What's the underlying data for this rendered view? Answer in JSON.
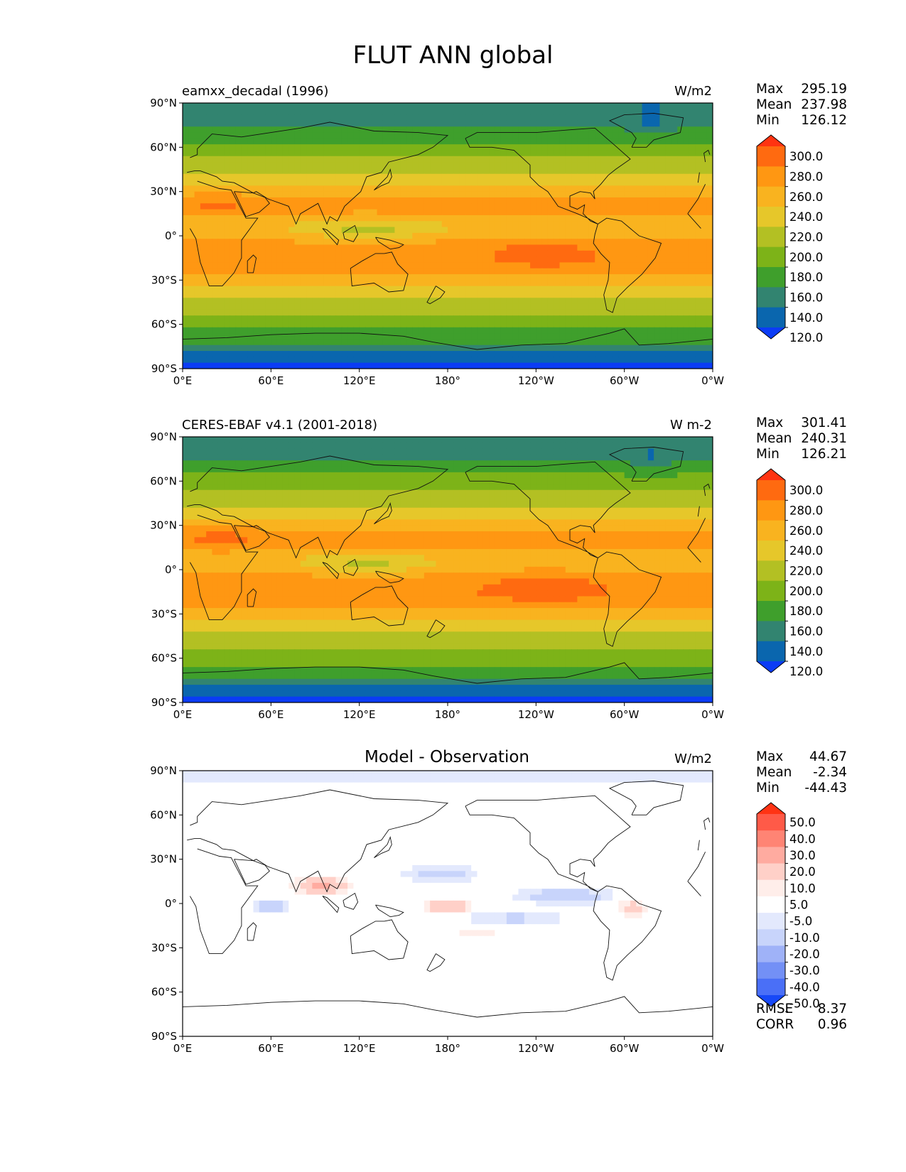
{
  "figure": {
    "title": "FLUT ANN global"
  },
  "panels": [
    {
      "title_left": "eamxx_decadal (1996)",
      "title_center": "",
      "units": "W/m2",
      "stats": [
        {
          "label": "Max",
          "value": "295.19"
        },
        {
          "label": "Mean",
          "value": "237.98"
        },
        {
          "label": "Min",
          "value": "126.12"
        }
      ],
      "colorbar": "abs"
    },
    {
      "title_left": "CERES-EBAF v4.1 (2001-2018)",
      "title_center": "",
      "units": "W m-2",
      "stats": [
        {
          "label": "Max",
          "value": "301.41"
        },
        {
          "label": "Mean",
          "value": "240.31"
        },
        {
          "label": "Min",
          "value": "126.21"
        }
      ],
      "colorbar": "abs"
    },
    {
      "title_left": "",
      "title_center": "Model - Observation",
      "units": "W/m2",
      "stats": [
        {
          "label": "Max",
          "value": "44.67"
        },
        {
          "label": "Mean",
          "value": "-2.34"
        },
        {
          "label": "Min",
          "value": "-44.43"
        }
      ],
      "colorbar": "diff",
      "extra_stats": [
        {
          "label": "RMSE",
          "value": "8.37"
        },
        {
          "label": "CORR",
          "value": "0.96"
        }
      ]
    }
  ],
  "axes": {
    "lat_ticks": [
      "90°N",
      "60°N",
      "30°N",
      "0°",
      "30°S",
      "60°S",
      "90°S"
    ],
    "lon_ticks": [
      "0°E",
      "60°E",
      "120°E",
      "180°",
      "120°W",
      "60°W",
      "0°W"
    ]
  },
  "colorbars": {
    "abs": {
      "labels": [
        "300.0",
        "280.0",
        "260.0",
        "240.0",
        "220.0",
        "200.0",
        "180.0",
        "160.0",
        "140.0",
        "120.0"
      ],
      "colors_top_to_bottom": [
        "#ff3311",
        "#ff6a10",
        "#ff9712",
        "#f9b31f",
        "#e6c72a",
        "#b3c023",
        "#7db318",
        "#3f9f2c",
        "#328470",
        "#0a66ae",
        "#0b3cf5"
      ]
    },
    "diff": {
      "labels": [
        "50.0",
        "40.0",
        "30.0",
        "20.0",
        "10.0",
        "5.0",
        "-5.0",
        "-10.0",
        "-20.0",
        "-30.0",
        "-40.0",
        "-50.0"
      ],
      "colors_top_to_bottom": [
        "#ff3314",
        "#ff5a48",
        "#ff8474",
        "#ffaba0",
        "#ffd0c8",
        "#ffeeea",
        "#ffffff",
        "#e3e9fd",
        "#c8d4fb",
        "#9fb2f8",
        "#7390f6",
        "#4a6ff7",
        "#1748f7"
      ]
    }
  },
  "chart_data": [
    {
      "type": "heatmap",
      "title": "eamxx_decadal (1996)",
      "xlabel": "",
      "ylabel": "",
      "x_ticks": [
        "0°E",
        "60°E",
        "120°E",
        "180°",
        "120°W",
        "60°W",
        "0°W"
      ],
      "y_ticks": [
        "90°N",
        "60°N",
        "30°N",
        "0°",
        "30°S",
        "60°S",
        "90°S"
      ],
      "units": "W/m2",
      "max": 295.19,
      "mean": 237.98,
      "min": 126.12,
      "zonal_bands_approx": [
        {
          "lat": 80,
          "value": 185
        },
        {
          "lat": 60,
          "value": 195
        },
        {
          "lat": 40,
          "value": 225
        },
        {
          "lat": 25,
          "value": 255
        },
        {
          "lat": 10,
          "value": 245
        },
        {
          "lat": -10,
          "value": 255
        },
        {
          "lat": -30,
          "value": 255
        },
        {
          "lat": -50,
          "value": 210
        },
        {
          "lat": -65,
          "value": 190
        },
        {
          "lat": -80,
          "value": 140
        }
      ],
      "colorbar_levels": [
        120,
        140,
        160,
        180,
        200,
        220,
        240,
        260,
        280,
        300
      ]
    },
    {
      "type": "heatmap",
      "title": "CERES-EBAF v4.1 (2001-2018)",
      "xlabel": "",
      "ylabel": "",
      "x_ticks": [
        "0°E",
        "60°E",
        "120°E",
        "180°",
        "120°W",
        "60°W",
        "0°W"
      ],
      "y_ticks": [
        "90°N",
        "60°N",
        "30°N",
        "0°",
        "30°S",
        "60°S",
        "90°S"
      ],
      "units": "W m-2",
      "max": 301.41,
      "mean": 240.31,
      "min": 126.21,
      "zonal_bands_approx": [
        {
          "lat": 80,
          "value": 185
        },
        {
          "lat": 60,
          "value": 205
        },
        {
          "lat": 40,
          "value": 230
        },
        {
          "lat": 25,
          "value": 260
        },
        {
          "lat": 10,
          "value": 250
        },
        {
          "lat": -10,
          "value": 260
        },
        {
          "lat": -30,
          "value": 258
        },
        {
          "lat": -50,
          "value": 215
        },
        {
          "lat": -65,
          "value": 195
        },
        {
          "lat": -80,
          "value": 140
        }
      ],
      "colorbar_levels": [
        120,
        140,
        160,
        180,
        200,
        220,
        240,
        260,
        280,
        300
      ]
    },
    {
      "type": "heatmap",
      "title": "Model - Observation",
      "xlabel": "",
      "ylabel": "",
      "x_ticks": [
        "0°E",
        "60°E",
        "120°E",
        "180°",
        "120°W",
        "60°W",
        "0°W"
      ],
      "y_ticks": [
        "90°N",
        "60°N",
        "30°N",
        "0°",
        "30°S",
        "60°S",
        "90°S"
      ],
      "units": "W/m2",
      "max": 44.67,
      "mean": -2.34,
      "min": -44.43,
      "rmse": 8.37,
      "corr": 0.96,
      "colorbar_levels": [
        -50,
        -40,
        -30,
        -20,
        -10,
        -5,
        5,
        10,
        20,
        30,
        40,
        50
      ]
    }
  ]
}
